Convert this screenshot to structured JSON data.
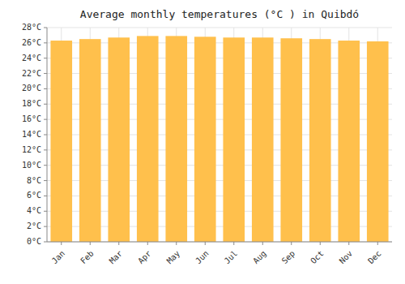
{
  "chart_data": {
    "type": "bar",
    "title": "Average monthly temperatures (°C ) in Quibdó",
    "categories": [
      "Jan",
      "Feb",
      "Mar",
      "Apr",
      "May",
      "Jun",
      "Jul",
      "Aug",
      "Sep",
      "Oct",
      "Nov",
      "Dec"
    ],
    "values": [
      26.3,
      26.5,
      26.7,
      26.9,
      26.9,
      26.8,
      26.7,
      26.7,
      26.6,
      26.5,
      26.3,
      26.2
    ],
    "color": "#FFC04C",
    "ylim": [
      0,
      28
    ],
    "yticks": [
      {
        "value": 0,
        "label": "0°C"
      },
      {
        "value": 2,
        "label": "2°C"
      },
      {
        "value": 4,
        "label": "4°C"
      },
      {
        "value": 6,
        "label": "6°C"
      },
      {
        "value": 8,
        "label": "8°C"
      },
      {
        "value": 10,
        "label": "10°C"
      },
      {
        "value": 12,
        "label": "12°C"
      },
      {
        "value": 14,
        "label": "14°C"
      },
      {
        "value": 16,
        "label": "16°C"
      },
      {
        "value": 18,
        "label": "18°C"
      },
      {
        "value": 20,
        "label": "20°C"
      },
      {
        "value": 22,
        "label": "22°C"
      },
      {
        "value": 24,
        "label": "24°C"
      },
      {
        "value": 26,
        "label": "26°C"
      },
      {
        "value": 28,
        "label": "28°C"
      }
    ],
    "grid": true
  }
}
